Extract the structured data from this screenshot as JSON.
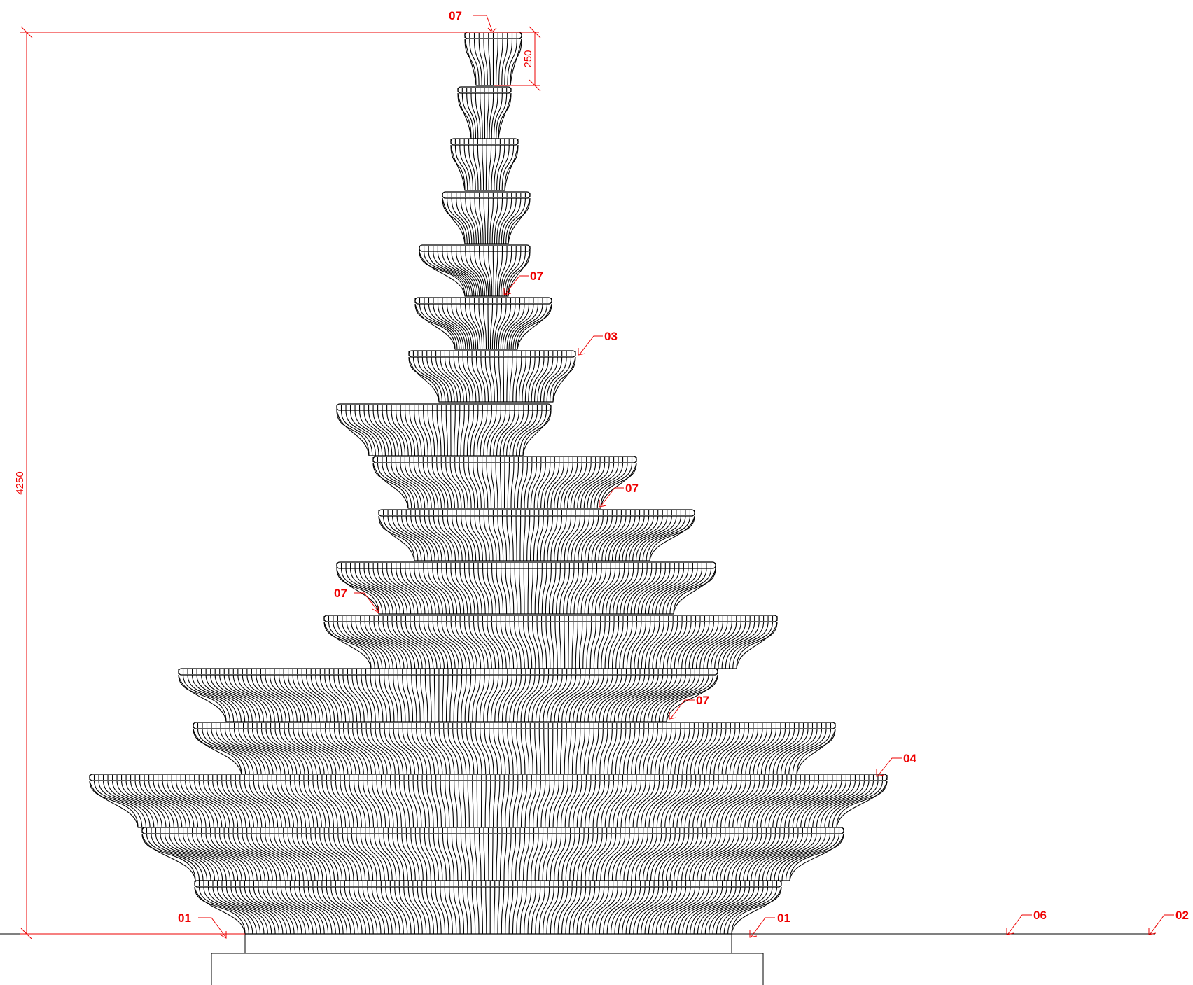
{
  "colors": {
    "annotation": "#ee0000",
    "linework": "#000000",
    "background": "#ffffff"
  },
  "dimensions": {
    "overall_height": "4250",
    "top_tier_height": "250"
  },
  "callouts": [
    {
      "id": "top-07",
      "label": "07"
    },
    {
      "id": "tier6-07",
      "label": "07"
    },
    {
      "id": "tier7-03",
      "label": "03"
    },
    {
      "id": "tier9-07",
      "label": "07"
    },
    {
      "id": "tier11-07",
      "label": "07"
    },
    {
      "id": "tier13-07",
      "label": "07"
    },
    {
      "id": "tier15-04",
      "label": "04"
    },
    {
      "id": "base-left-01",
      "label": "01"
    },
    {
      "id": "base-right-01",
      "label": "01"
    },
    {
      "id": "ground-06",
      "label": "06"
    },
    {
      "id": "ground-02",
      "label": "02"
    }
  ]
}
